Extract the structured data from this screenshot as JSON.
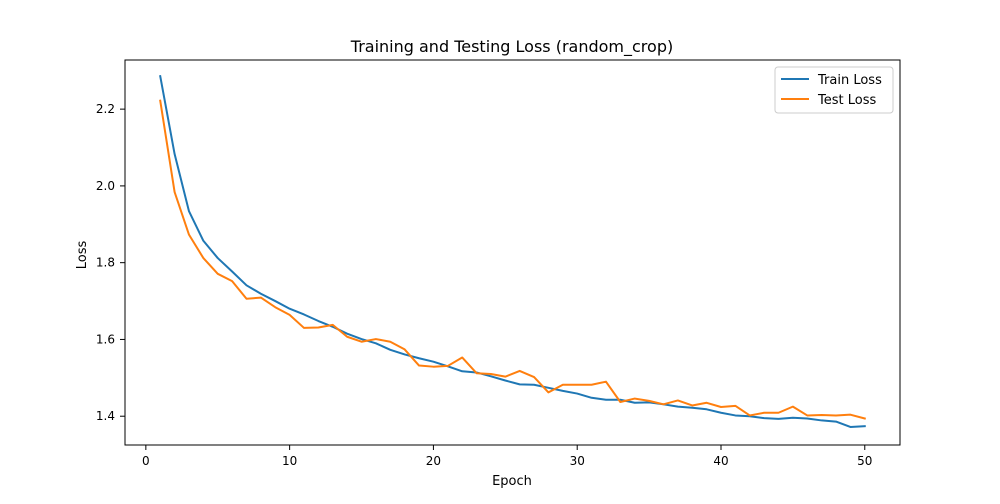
{
  "colors": {
    "train": "#1f77b4",
    "test": "#ff7f0e"
  },
  "chart_data": {
    "type": "line",
    "title": "Training and Testing Loss (random_crop)",
    "xlabel": "Epoch",
    "ylabel": "Loss",
    "xlim": [
      -1.45,
      52.45
    ],
    "ylim": [
      1.325,
      2.328
    ],
    "xticks": [
      0,
      10,
      20,
      30,
      40,
      50
    ],
    "yticks": [
      1.4,
      1.6,
      1.8,
      2.0,
      2.2
    ],
    "xtick_labels": [
      "0",
      "10",
      "20",
      "30",
      "40",
      "50"
    ],
    "ytick_labels": [
      "1.4",
      "1.6",
      "1.8",
      "2.0",
      "2.2"
    ],
    "legend_position": "top-right",
    "x": [
      1,
      2,
      3,
      4,
      5,
      6,
      7,
      8,
      9,
      10,
      11,
      12,
      13,
      14,
      15,
      16,
      17,
      18,
      19,
      20,
      21,
      22,
      23,
      24,
      25,
      26,
      27,
      28,
      29,
      30,
      31,
      32,
      33,
      34,
      35,
      36,
      37,
      38,
      39,
      40,
      41,
      42,
      43,
      44,
      45,
      46,
      47,
      48,
      49,
      50
    ],
    "series": [
      {
        "name": "Train Loss",
        "color": "#1f77b4",
        "values": [
          2.286,
          2.083,
          1.934,
          1.857,
          1.812,
          1.777,
          1.741,
          1.719,
          1.7,
          1.68,
          1.665,
          1.648,
          1.633,
          1.615,
          1.601,
          1.59,
          1.573,
          1.561,
          1.551,
          1.542,
          1.53,
          1.517,
          1.514,
          1.504,
          1.493,
          1.483,
          1.482,
          1.474,
          1.466,
          1.459,
          1.448,
          1.443,
          1.443,
          1.435,
          1.436,
          1.431,
          1.425,
          1.422,
          1.418,
          1.409,
          1.402,
          1.4,
          1.395,
          1.393,
          1.396,
          1.394,
          1.389,
          1.386,
          1.372,
          1.374
        ]
      },
      {
        "name": "Test Loss",
        "color": "#ff7f0e",
        "values": [
          2.222,
          1.984,
          1.873,
          1.812,
          1.771,
          1.752,
          1.706,
          1.709,
          1.684,
          1.664,
          1.63,
          1.631,
          1.638,
          1.607,
          1.594,
          1.601,
          1.594,
          1.574,
          1.532,
          1.529,
          1.531,
          1.553,
          1.512,
          1.51,
          1.503,
          1.518,
          1.502,
          1.462,
          1.482,
          1.482,
          1.482,
          1.49,
          1.437,
          1.446,
          1.44,
          1.431,
          1.441,
          1.428,
          1.435,
          1.424,
          1.427,
          1.402,
          1.409,
          1.409,
          1.425,
          1.402,
          1.403,
          1.402,
          1.404,
          1.394
        ]
      }
    ]
  }
}
